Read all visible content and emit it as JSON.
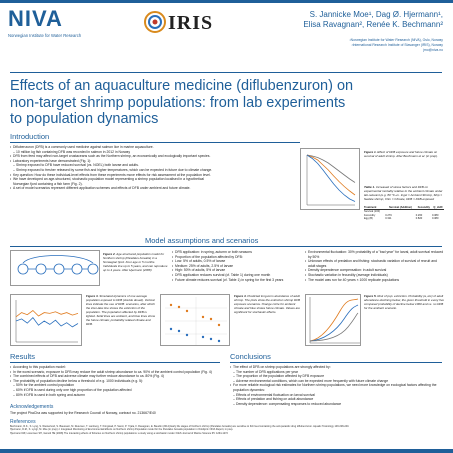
{
  "header": {
    "niva_logo": "NIVA",
    "niva_sub": "Norwegian Institute for Water Research",
    "iris_logo": "IRIS",
    "authors_line1": "S. Jannicke Moe¹, Dag Ø. Hjermann¹,",
    "authors_line2": "Elisa Ravagnan², Renée K. Bechmann²",
    "affiliations": [
      "¹Norwegian Institute for Water Research (NIVA), Oslo, Norway",
      "²International Research Institute of Stavanger (IRIS), Norway",
      "jmo@niva.no"
    ]
  },
  "title_line1": "Effects of an aquaculture medicine (diflubenzuron) on",
  "title_line2": "non-target shrimp populations: from lab experiments",
  "title_line3": "to population dynamics",
  "introduction": {
    "heading": "Introduction",
    "bullets": [
      {
        "text": "Diflubenzuron (DFB) is a commonly used medicine against salmon lice in marine aquaculture.",
        "level": 0
      },
      {
        "text": "10 million kg fish containing DFB was recorded in salmon in 2012 in Norway",
        "level": 1
      },
      {
        "text": "DFB from feed may affect non-target crustaceans such as the Northern shrimp, an economically and ecologically important species.",
        "level": 0
      },
      {
        "text": "Laboratory experiments have demonstrated (Fig. 1):",
        "level": 0
      },
      {
        "text": "Shrimp exposed to DFB have reduced survival (vs. NOEL) both larvae and adults.",
        "level": 1
      },
      {
        "text": "Shrimp exposed to fresher released by some fish and higher temperatures, which can be expected in future due to climate change.",
        "level": 1
      },
      {
        "text": "Key question: How do these individual-level effects from these experiments move effects for risk assessment at the population level.",
        "level": 0
      },
      {
        "text": "We have developed an age-structured, stochastic population model representing a shrimp population localised in a hypothetical Norwegian fjord containing a fish farm (Fig. 2).",
        "level": 0
      },
      {
        "text": "A set of model scenarios represent different application schemes and effects of DFB under ambient and future climate.",
        "level": 0
      }
    ]
  },
  "figure1": {
    "label": "Figure 1.",
    "caption": "Effect of DFB exposure and future climate on survival of adult shrimp. After Bechmann et al. (in prep)."
  },
  "table1": {
    "label": "Table 1.",
    "caption": "Increased of stress factors and DFB on experimental mortality relative to the ambient climate under lab-relevant (e.g. 80 °C–m. Ingst = Ambient Shrimp, Ship = Sedate shrimp, Clim = Climate, DFB = DFB-exposed",
    "headers": [
      "",
      "Treatment",
      "Survival (Addition)",
      "Fecundity",
      "Q_dx/D"
    ],
    "rows": [
      [
        "Survival (100)",
        "",
        "",
        "",
        ""
      ],
      [
        "Fecundity",
        "D",
        "0.279",
        "0.260",
        "0.380"
      ],
      [
        "Egg (B)",
        "D",
        "0.311",
        "0.820",
        "0.380"
      ]
    ]
  },
  "model": {
    "heading": "Model assumptions and scenarios",
    "figure2_label": "Figure 2.",
    "figure2_caption": "Age-structured population model for Northern shrimp (Pandalus borealis) in a Norwegian fjord. Four age or 5 months. Individuals live up to 5 years, and can reproduce up to 4 years. After Hjermann (2008)",
    "left_bullets": [
      "DFB application: in spring, autumn or both seasons",
      "Proportion of the population affected by DFB:",
      "Low: 5% of adults, 0.5% of larvae",
      "Medium: 25% of adults, 2.5% of larvae",
      "High: 50% of adults, 5% of larvae",
      "DFB application reduces survival (cf. Table 1) during one month",
      "Future climate reduces survival (cf. Table 1) in spring for the first 3 years"
    ],
    "right_bullets": [
      "Environmental fluctuation: 30% probability of a \"bad year\" for larval, adult survival reduced by 50%",
      "Unknown effects of predation and fishing: stochastic variation of survival of recruit and adult stages",
      "Density dependence compensation: in adult survival",
      "Stochastic variation in fecundity (average individuals)",
      "The model was run for 40 years × 1000 replicate populations"
    ]
  },
  "figure3": {
    "label": "Figure 3.",
    "caption": "Simulated dynamics of one average population exposed to DFB (double dosed). Vertical lines indicate the use of DFB: scenarios, after which the inter-lake line shows the extinction of the population. The population affected by DFB is lighted. Solid lines are ambient, and blue lines show the future climate; probability related climate and DFB."
  },
  "figure4": {
    "label": "Figure 4.",
    "caption": "Predicted long-term abundance of adult shrimp. The plots show the extinction shrimp DFB exposure scenarios. Orange circle for ambient climate and blue shows future climate. Values are significant for stochastic effects."
  },
  "figure5": {
    "label": "Figure 5.",
    "caption": "Risk of pop. extinction. Probability (a, etc) of adult abundance declining below, the given threshold in every five compared probability of decline below 1000 and vs. no DFB for the ambient scenario."
  },
  "results": {
    "heading": "Results",
    "bullets": [
      {
        "text": "According to this population model:",
        "level": 0
      },
      {
        "text": "In the worst scenario, exposure to DFB may reduce the adult shrimp abundance to ca. 90% of the ambient control population (Fig. 4)",
        "level": 0
      },
      {
        "text": "The combined effects of DFB and adverse climate may further reduce abundance to ca. 80% (Fig. 4)",
        "level": 0
      },
      {
        "text": "The probability of population decline below a threshold of e.g. 1000 individuals (e.g. 5):",
        "level": 0
      },
      {
        "text": "50% for the ambient control population",
        "level": 1
      },
      {
        "text": "60% if DFB is used during only one high proportion of the population affected",
        "level": 1
      },
      {
        "text": "80% if DFB is used in both spring and autumn",
        "level": 1
      }
    ]
  },
  "conclusions": {
    "heading": "Conclusions",
    "bullets": [
      {
        "text": "The effect of DFB on shrimp populations are strongly affected by:",
        "level": 0
      },
      {
        "text": "The number of DFB applications per year",
        "level": 1
      },
      {
        "text": "The proportion of the population affected by DFB exposure",
        "level": 1
      },
      {
        "text": "Adverse environmental conditions, which can be expected more frequently with future climate change",
        "level": 1
      },
      {
        "text": "For more reliable ecological risk estimates for Northern shrimp populations, we need more knowledge on ecological factors affecting the population dynamics:",
        "level": 0
      },
      {
        "text": "Effects of environmental fluctuation on larval survival",
        "level": 1
      },
      {
        "text": "Effects of predation and fishing on adult abundance",
        "level": 1
      },
      {
        "text": "Density dependence: compensating responses to reduced abundance",
        "level": 1
      }
    ]
  },
  "acknowledgements": {
    "heading": "Acknowledgements",
    "text": "The project PhaCha was supported by the Research Council of Norway, contract no. 213667/E40"
  },
  "references": {
    "heading": "References",
    "items": [
      "Bechmann, R.K., S. Lyng, S. Westerlund, S. Baussant, M. Reiersen, T. Lamberg, T. Kringstad, P. Sanni, P. Yrjala, F. Ravagnan, E. Baudin (2014) Early life stages of Northern shrimp (Pandalus borealis) are sensitive to fish feed containing the anti-parasitic drug diflubenzuron. Aquatic Toxicology 146:228-240.",
      "Hjermann, D.Ø., K. Lyngr, M. Moe (in prep) J. Integrated Monitoring of Environmental Effects on Northern shrimp Population model for the Pandalus borealis population in Oslofjord. NIVA Report, in prep.",
      "Hjermann DØ, Lorentsen SH, Gérard HE (2008) The interacting effects of fisheries on Northern shrimp populations: a study using a stochastic model. ICES Journal of Marine Science 65: 1264-1272"
    ]
  },
  "chart_data": [
    {
      "type": "line",
      "title": "",
      "series": [
        {
          "name": "",
          "values": [
            1.0,
            0.98,
            0.95,
            0.9,
            0.84,
            0.76,
            0.68,
            0.6,
            0.52,
            0.45
          ]
        },
        {
          "name": "",
          "values": [
            1.0,
            0.96,
            0.9,
            0.8,
            0.7,
            0.58,
            0.47,
            0.37,
            0.28,
            0.2
          ]
        },
        {
          "name": "",
          "values": [
            1.0,
            0.93,
            0.83,
            0.7,
            0.56,
            0.42,
            0.3,
            0.2,
            0.12,
            0.07
          ]
        }
      ],
      "xlabel": "",
      "ylabel": ""
    },
    {
      "type": "line",
      "title": "",
      "series": [
        {
          "name": "",
          "values": [
            0.6,
            0.7,
            0.65,
            0.75,
            0.62,
            0.7,
            0.68,
            0.72,
            0.66,
            0.7,
            0.64,
            0.68
          ]
        },
        {
          "name": "",
          "values": [
            0.5,
            0.55,
            0.45,
            0.58,
            0.4,
            0.5,
            0.42,
            0.52,
            0.38,
            0.46,
            0.36,
            0.44
          ]
        }
      ]
    }
  ],
  "colors": {
    "accent": "#1f5f99",
    "orange": "#e07b1f",
    "blue": "#2a6fbd"
  }
}
